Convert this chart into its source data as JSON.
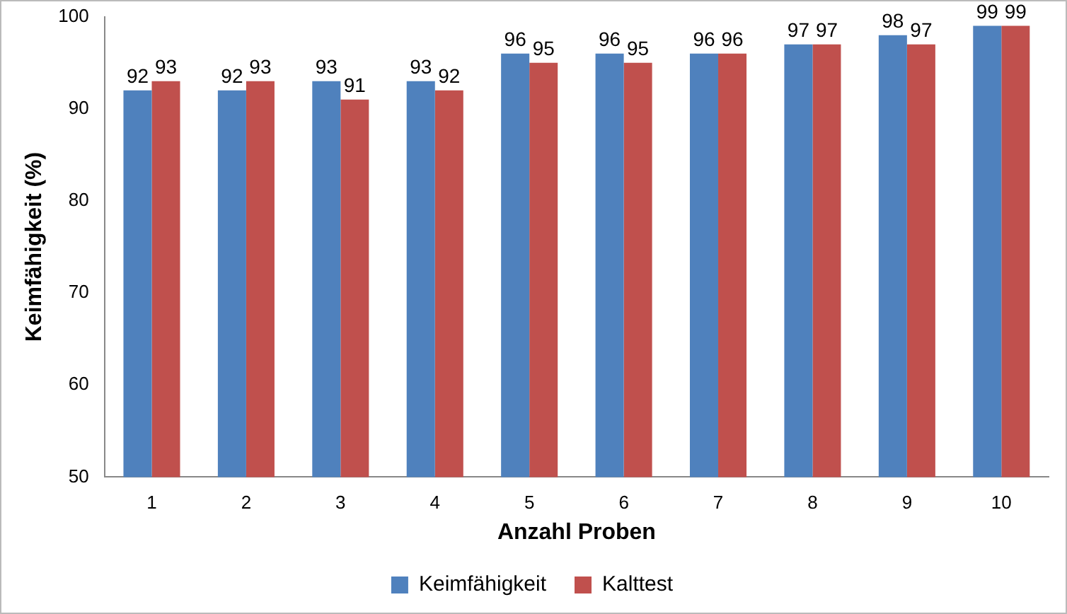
{
  "chart_data": {
    "type": "bar",
    "xlabel": "Anzahl Proben",
    "ylabel": "Keimfähigkeit (%)",
    "categories": [
      "1",
      "2",
      "3",
      "4",
      "5",
      "6",
      "7",
      "8",
      "9",
      "10"
    ],
    "series": [
      {
        "name": "Keimfähigkeit",
        "color": "#4f81bd",
        "values": [
          92,
          92,
          93,
          93,
          96,
          96,
          96,
          97,
          98,
          99
        ]
      },
      {
        "name": "Kalttest",
        "color": "#c0504d",
        "values": [
          93,
          93,
          91,
          92,
          95,
          95,
          96,
          97,
          97,
          99
        ]
      }
    ],
    "ylim": [
      50,
      100
    ],
    "yticks": [
      50,
      60,
      70,
      80,
      90,
      100
    ],
    "grid": false,
    "legend": "bottom",
    "data_labels": true
  }
}
